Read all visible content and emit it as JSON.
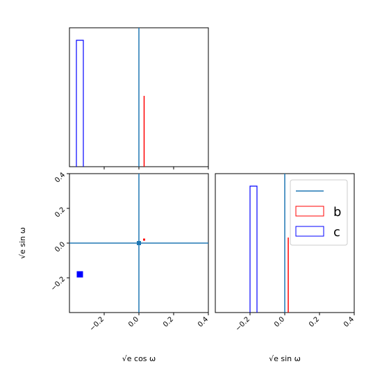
{
  "chart_data": {
    "type": "corner",
    "axis_range": [
      -0.4,
      0.4
    ],
    "ticks": [
      -0.2,
      0.0,
      0.2,
      0.4
    ],
    "tick_labels": [
      "−0.2",
      "0.0",
      "0.2",
      "0.4"
    ],
    "xlabel_cos": "√e cos ω",
    "ylabel_sin": "√e sin ω",
    "xlabel_sin": "√e sin ω",
    "truth": {
      "x": 0.0,
      "y": 0.0,
      "color": "#1f77b4"
    },
    "legend": {
      "placement": "upper-right of lower-right panel",
      "entries": [
        "b",
        "c"
      ]
    },
    "series": [
      {
        "name": "b",
        "color": "#ff0000",
        "cos_w": 0.03,
        "sin_w": 0.02,
        "hist_height_cos": 0.51,
        "hist_height_sin": 0.54
      },
      {
        "name": "c",
        "color": "#0000ff",
        "cos_w": -0.34,
        "sin_w": -0.18,
        "hist_bin_cos": [
          -0.36,
          -0.32
        ],
        "hist_bin_sin": [
          -0.2,
          -0.16
        ],
        "hist_height_cos": 0.91,
        "hist_height_sin": 0.91
      }
    ]
  }
}
